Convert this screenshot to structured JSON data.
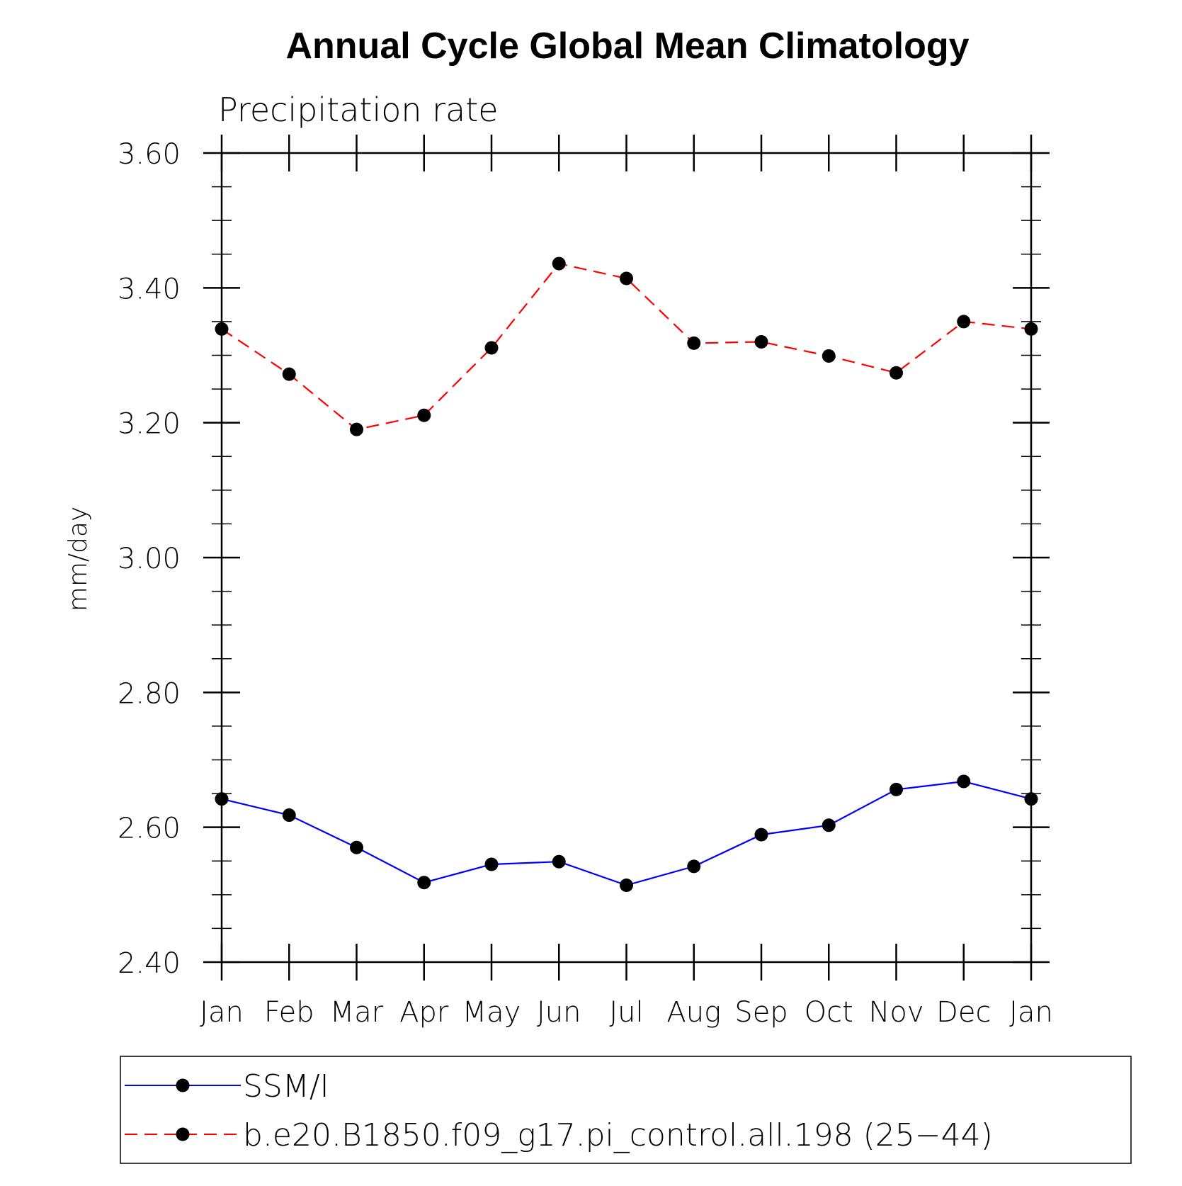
{
  "chart_data": {
    "type": "line",
    "title": "Annual Cycle Global Mean Climatology",
    "subtitle": "Precipitation rate",
    "ylabel": "mm/day",
    "xlabel": "",
    "categories": [
      "Jan",
      "Feb",
      "Mar",
      "Apr",
      "May",
      "Jun",
      "Jul",
      "Aug",
      "Sep",
      "Oct",
      "Nov",
      "Dec",
      "Jan"
    ],
    "ylim": [
      2.4,
      3.6
    ],
    "yticks": [
      "2.40",
      "2.60",
      "2.80",
      "3.00",
      "3.20",
      "3.40",
      "3.60"
    ],
    "ytick_values": [
      2.4,
      2.6,
      2.8,
      3.0,
      3.2,
      3.4,
      3.6
    ],
    "y_minor_step": 0.05,
    "grid": false,
    "legend_position": "bottom",
    "series": [
      {
        "name": "SSM/I",
        "color": "#0000ff",
        "line_style": "solid",
        "marker": "filled-circle",
        "marker_color": "#000000",
        "values": [
          2.642,
          2.618,
          2.57,
          2.518,
          2.545,
          2.549,
          2.514,
          2.542,
          2.589,
          2.603,
          2.656,
          2.668,
          2.642
        ]
      },
      {
        "name": "b.e20.B1850.f09_g17.pi_control.all.198 (25−44)",
        "color": "#ff0000",
        "line_style": "dashed",
        "marker": "filled-circle",
        "marker_color": "#000000",
        "values": [
          3.339,
          3.272,
          3.19,
          3.211,
          3.311,
          3.436,
          3.414,
          3.318,
          3.32,
          3.299,
          3.274,
          3.35,
          3.339
        ]
      }
    ]
  }
}
